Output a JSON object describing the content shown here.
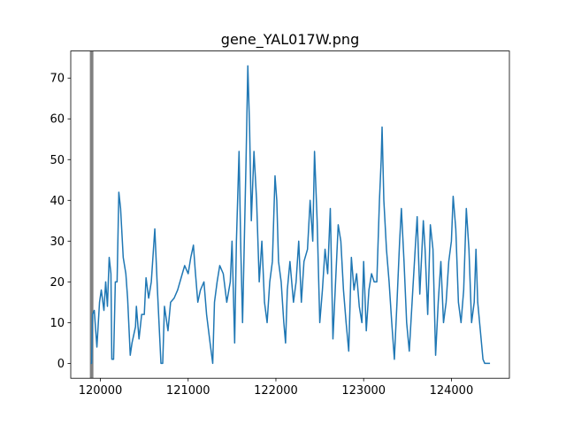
{
  "chart_data": {
    "type": "line",
    "title": "gene_YAL017W.png",
    "x": [
      119890,
      119900,
      119910,
      119930,
      119960,
      119990,
      120010,
      120040,
      120060,
      120080,
      120100,
      120120,
      120130,
      120150,
      120170,
      120190,
      120210,
      120230,
      120260,
      120290,
      120310,
      120340,
      120360,
      120380,
      120400,
      120410,
      120440,
      120470,
      120500,
      120520,
      120550,
      120580,
      120620,
      120650,
      120690,
      120710,
      120730,
      120770,
      120800,
      120840,
      120880,
      120920,
      120960,
      121000,
      121030,
      121060,
      121080,
      121110,
      121140,
      121180,
      121210,
      121250,
      121280,
      121300,
      121330,
      121360,
      121400,
      121440,
      121480,
      121500,
      121530,
      121550,
      121580,
      121600,
      121620,
      121640,
      121660,
      121680,
      121700,
      121720,
      121750,
      121780,
      121810,
      121840,
      121870,
      121900,
      121930,
      121960,
      121990,
      122010,
      122030,
      122060,
      122090,
      122110,
      122130,
      122160,
      122200,
      122230,
      122260,
      122290,
      122320,
      122360,
      122390,
      122420,
      122440,
      122470,
      122500,
      122530,
      122560,
      122590,
      122620,
      122650,
      122680,
      122710,
      122740,
      122770,
      122800,
      122830,
      122860,
      122890,
      122920,
      122950,
      122980,
      123000,
      123030,
      123060,
      123090,
      123120,
      123150,
      123180,
      123200,
      123210,
      123230,
      123260,
      123290,
      123320,
      123350,
      123380,
      123410,
      123430,
      123460,
      123490,
      123520,
      123560,
      123590,
      123610,
      123640,
      123680,
      123700,
      123730,
      123760,
      123790,
      123820,
      123850,
      123880,
      123910,
      123940,
      123970,
      124000,
      124020,
      124050,
      124080,
      124110,
      124140,
      124170,
      124200,
      124230,
      124260,
      124280,
      124300,
      124330,
      124360,
      124380,
      124440
    ],
    "series": [
      {
        "color": "#1f77b4",
        "values": [
          0,
          0,
          12,
          13,
          4,
          15,
          18,
          13,
          20,
          14,
          26,
          22,
          1,
          1,
          20,
          20,
          42,
          38,
          26,
          22,
          16,
          2,
          5,
          7,
          9,
          14,
          6,
          12,
          12,
          21,
          16,
          20,
          33,
          18,
          0,
          0,
          14,
          8,
          15,
          16,
          18,
          21,
          24,
          22,
          26,
          29,
          23,
          15,
          18,
          20,
          12,
          5,
          0,
          15,
          20,
          24,
          22,
          15,
          20,
          30,
          5,
          30,
          52,
          28,
          10,
          30,
          50,
          73,
          58,
          35,
          52,
          40,
          20,
          30,
          15,
          10,
          20,
          25,
          46,
          40,
          25,
          20,
          10,
          5,
          18,
          25,
          15,
          20,
          30,
          15,
          25,
          28,
          40,
          30,
          52,
          35,
          10,
          18,
          28,
          22,
          38,
          6,
          20,
          34,
          30,
          18,
          10,
          3,
          26,
          18,
          22,
          14,
          10,
          25,
          8,
          18,
          22,
          20,
          20,
          40,
          50,
          58,
          40,
          28,
          20,
          10,
          1,
          15,
          30,
          38,
          25,
          10,
          3,
          18,
          29,
          36,
          17,
          35,
          28,
          12,
          34,
          28,
          2,
          15,
          25,
          10,
          15,
          25,
          30,
          41,
          33,
          15,
          10,
          18,
          38,
          28,
          10,
          15,
          28,
          15,
          8,
          1,
          0,
          0
        ]
      }
    ],
    "vline": {
      "x": 119900,
      "color": "#808080"
    },
    "xlim": [
      119662,
      124661
    ],
    "ylim": [
      -3.65,
      76.65
    ],
    "xticks": [
      120000,
      121000,
      122000,
      123000,
      124000
    ],
    "yticks": [
      0,
      10,
      20,
      30,
      40,
      50,
      60,
      70
    ]
  }
}
